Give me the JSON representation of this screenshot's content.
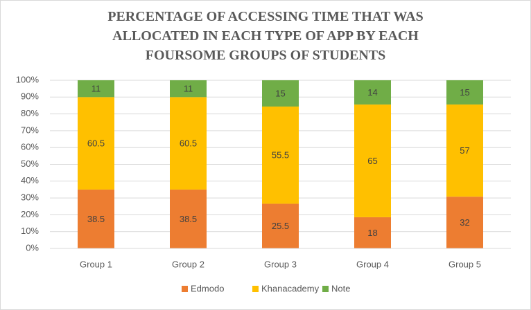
{
  "chart_data": {
    "type": "bar",
    "stacking": "percent",
    "title": "PERCENTAGE OF ACCESSING TIME THAT WAS ALLOCATED IN EACH TYPE OF APP BY EACH FOURSOME GROUPS OF STUDENTS",
    "categories": [
      "Group 1",
      "Group 2",
      "Group 3",
      "Group 4",
      "Group 5"
    ],
    "series": [
      {
        "name": "Edmodo",
        "color": "#ed7d31",
        "values": [
          38.5,
          38.5,
          25.5,
          18,
          32
        ]
      },
      {
        "name": "Khanacademy",
        "color": "#ffc000",
        "values": [
          60.5,
          60.5,
          55.5,
          65,
          57
        ]
      },
      {
        "name": "Note",
        "color": "#70ad47",
        "values": [
          11,
          11,
          15,
          14,
          15
        ]
      }
    ],
    "ylim": [
      0,
      100
    ],
    "yticks": [
      {
        "value": 0,
        "label": "0%"
      },
      {
        "value": 10,
        "label": "10%"
      },
      {
        "value": 20,
        "label": "20%"
      },
      {
        "value": 30,
        "label": "30%"
      },
      {
        "value": 40,
        "label": "40%"
      },
      {
        "value": 50,
        "label": "50%"
      },
      {
        "value": 60,
        "label": "60%"
      },
      {
        "value": 70,
        "label": "70%"
      },
      {
        "value": 80,
        "label": "80%"
      },
      {
        "value": 90,
        "label": "90%"
      },
      {
        "value": 100,
        "label": "100%"
      }
    ],
    "grid": true,
    "legend": "bottom"
  }
}
